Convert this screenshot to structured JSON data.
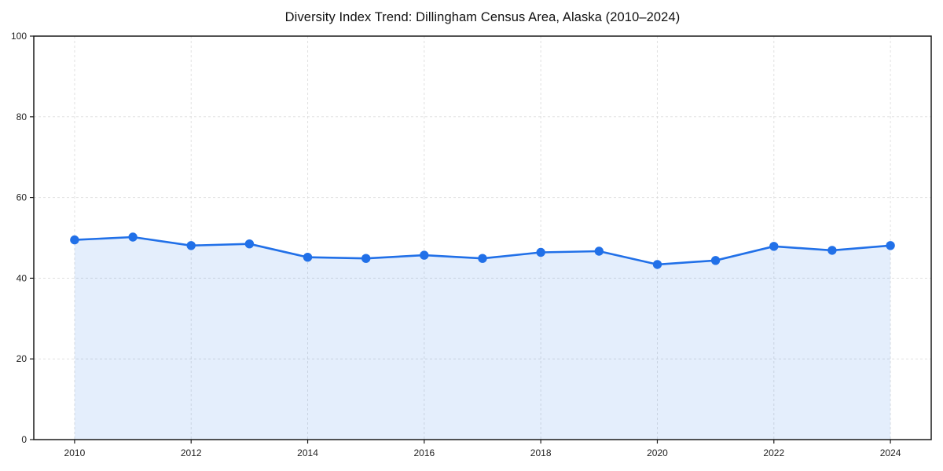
{
  "page": {
    "background": "#ffffff"
  },
  "chart_data": {
    "type": "line",
    "title": "Diversity Index Trend: Dillingham Census Area, Alaska (2010–2024)",
    "x": [
      2010,
      2011,
      2012,
      2013,
      2014,
      2015,
      2016,
      2017,
      2018,
      2019,
      2020,
      2021,
      2022,
      2023,
      2024
    ],
    "values": [
      49.5,
      50.2,
      48.1,
      48.5,
      45.2,
      44.9,
      45.7,
      44.9,
      46.4,
      46.7,
      43.4,
      44.4,
      47.9,
      46.9,
      48.1
    ],
    "xlabel": "",
    "ylabel": "",
    "xlim": [
      2009.3,
      2024.7
    ],
    "ylim": [
      0,
      100
    ],
    "xticks": [
      2010,
      2012,
      2014,
      2016,
      2018,
      2020,
      2022,
      2024
    ],
    "yticks": [
      0,
      20,
      40,
      60,
      80,
      100
    ],
    "grid": true,
    "grid_style": "dashed",
    "legend": false,
    "marker": "circle",
    "area_fill": true,
    "colors": {
      "line": "#2170e8",
      "marker": "#2170e8",
      "area": "#2170e8",
      "area_opacity": 0.12,
      "grid": "#d9d9d9",
      "frame": "#1a1a1a",
      "tick": "#1a1a1a",
      "tick_label": "#222222",
      "title": "#111111"
    }
  }
}
